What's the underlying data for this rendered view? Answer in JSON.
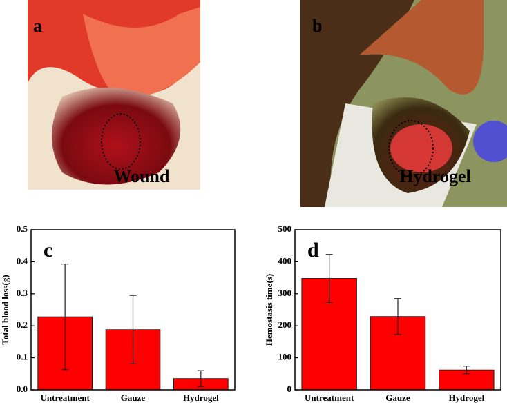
{
  "panels": [
    {
      "label": "a",
      "caption": "Wound"
    },
    {
      "label": "b",
      "caption": "Hydrogel"
    }
  ],
  "chart_data": [
    {
      "type": "bar",
      "panel_label": "c",
      "ylabel": "Total blood loss(g)",
      "categories": [
        "Untreatment",
        "Gauze",
        "Hydrogel"
      ],
      "values": [
        0.228,
        0.188,
        0.035
      ],
      "errors": [
        0.165,
        0.107,
        0.025
      ],
      "color": "#ff0000",
      "ylim": [
        0,
        0.5
      ],
      "yticks": [
        {
          "value": 0,
          "label": "0.0"
        },
        0.1,
        0.2,
        0.3,
        0.4,
        0.5
      ]
    },
    {
      "type": "bar",
      "panel_label": "d",
      "ylabel": "Hemostasis time(s)",
      "categories": [
        "Untreatment",
        "Gauze",
        "Hydrogel"
      ],
      "values": [
        348,
        229,
        62
      ],
      "errors": [
        75,
        56,
        12
      ],
      "color": "#ff0000",
      "ylim": [
        0,
        500
      ],
      "yticks": [
        0,
        100,
        200,
        300,
        400,
        500
      ]
    }
  ]
}
